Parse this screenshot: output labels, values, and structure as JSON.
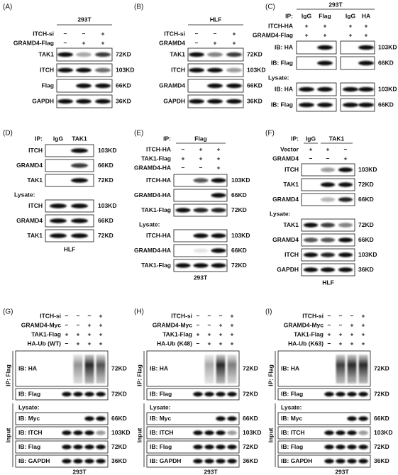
{
  "panels": [
    {
      "label": "(A)",
      "title": "293T",
      "conditions": [
        {
          "name": "ITCH-si",
          "values": [
            "−",
            "−",
            "+"
          ]
        },
        {
          "name": "GRAMD4-Flag",
          "values": [
            "−",
            "+",
            "+"
          ]
        }
      ],
      "sections": [
        {
          "blots": [
            {
              "label": "TAK1",
              "size": "72KD"
            },
            {
              "label": "ITCH",
              "size": "103KD"
            },
            {
              "label": "Flag",
              "size": "66KD"
            },
            {
              "label": "GAPDH",
              "size": "36KD"
            }
          ]
        }
      ]
    },
    {
      "label": "(B)",
      "title": "HLF",
      "conditions": [
        {
          "name": "ITCH-si",
          "values": [
            "−",
            "−",
            "+"
          ]
        },
        {
          "name": "GRAMD4",
          "values": [
            "−",
            "+",
            "+"
          ]
        }
      ],
      "sections": [
        {
          "blots": [
            {
              "label": "TAK1",
              "size": "72KD"
            },
            {
              "label": "ITCH",
              "size": "103KD"
            },
            {
              "label": "GRAMD4",
              "size": "66KD"
            },
            {
              "label": "GAPDH",
              "size": "36KD"
            }
          ]
        }
      ]
    },
    {
      "label": "(C)",
      "title": "293T",
      "ip": {
        "label": "IP:",
        "groups": [
          "IgG",
          "Flag",
          "IgG",
          "HA"
        ]
      },
      "conditions": [
        {
          "name": "ITCH-HA",
          "values": [
            "+",
            "+",
            "+",
            "+"
          ]
        },
        {
          "name": "GRAMD4-Flag",
          "values": [
            "+",
            "+",
            "+",
            "+"
          ]
        }
      ],
      "sections": [
        {
          "blots": [
            {
              "label": "IB: HA",
              "size": "103KD"
            },
            {
              "label": "IB: Flag",
              "size": "66KD"
            }
          ]
        },
        {
          "heading": "Lysate:",
          "blots": [
            {
              "label": "IB: HA",
              "size": "103KD"
            },
            {
              "label": "IB: Flag",
              "size": "66KD"
            }
          ]
        }
      ]
    },
    {
      "label": "(D)",
      "footer": "HLF",
      "ip": {
        "label": "IP:",
        "groups": [
          "IgG",
          "TAK1"
        ]
      },
      "conditions": [],
      "sections": [
        {
          "blots": [
            {
              "label": "ITCH",
              "size": "103KD"
            },
            {
              "label": "GRAMD4",
              "size": "66KD"
            },
            {
              "label": "TAK1",
              "size": "72KD"
            }
          ]
        },
        {
          "heading": "Lysate:",
          "blots": [
            {
              "label": "ITCH",
              "size": "103KD"
            },
            {
              "label": "GRAMD4",
              "size": "66KD"
            },
            {
              "label": "TAK1",
              "size": "72KD"
            }
          ]
        }
      ]
    },
    {
      "label": "(E)",
      "footer": "293T",
      "ip": {
        "label": "IP:",
        "groups": [
          "Flag"
        ]
      },
      "conditions": [
        {
          "name": "ITCH-HA",
          "values": [
            "−",
            "+",
            "+"
          ]
        },
        {
          "name": "TAK1-Flag",
          "values": [
            "+",
            "+",
            "+"
          ]
        },
        {
          "name": "GRAMD4-HA",
          "values": [
            "−",
            "−",
            "+"
          ]
        }
      ],
      "sections": [
        {
          "blots": [
            {
              "label": "ITCH-HA",
              "size": "103KD"
            },
            {
              "label": "GRAMD4-HA",
              "size": "66KD"
            },
            {
              "label": "TAK1-Flag",
              "size": "72KD"
            }
          ]
        },
        {
          "heading": "Lysate:",
          "blots": [
            {
              "label": "ITCH-HA",
              "size": "103KD"
            },
            {
              "label": "GRAMD4-HA",
              "size": "66KD"
            },
            {
              "label": "TAK1-Flag",
              "size": "72KD"
            }
          ]
        }
      ]
    },
    {
      "label": "(F)",
      "footer": "HLF",
      "ip": {
        "label": "IP:",
        "groups": [
          "IgG",
          "TAK1"
        ]
      },
      "conditions": [
        {
          "name": "Vector",
          "values": [
            "+",
            "+",
            "−"
          ]
        },
        {
          "name": "GRAMD4",
          "values": [
            "−",
            "−",
            "+"
          ]
        }
      ],
      "sections": [
        {
          "blots": [
            {
              "label": "ITCH",
              "size": "103KD"
            },
            {
              "label": "TAK1",
              "size": "72KD"
            },
            {
              "label": "GRAMD4",
              "size": "66KD"
            }
          ]
        },
        {
          "heading": "Lysate:",
          "blots": [
            {
              "label": "TAK1",
              "size": "72KD"
            },
            {
              "label": "GRAMD4",
              "size": "66KD"
            },
            {
              "label": "ITCH",
              "size": "103KD"
            },
            {
              "label": "GAPDH",
              "size": "36KD"
            }
          ]
        }
      ]
    },
    {
      "label": "(G)",
      "footer": "293T",
      "conditions": [
        {
          "name": "ITCH-si",
          "values": [
            "−",
            "−",
            "−",
            "+"
          ]
        },
        {
          "name": "GRAMD4-Myc",
          "values": [
            "−",
            "−",
            "+",
            "+"
          ]
        },
        {
          "name": "TAK1-Flag",
          "values": [
            "+",
            "+",
            "+",
            "+"
          ]
        },
        {
          "name": "HA-Ub (WT)",
          "values": [
            "−",
            "+",
            "+",
            "+"
          ]
        }
      ],
      "sections": [
        {
          "side_label": "IP: Flag",
          "blots": [
            {
              "label": "IB: HA",
              "size": "72KD"
            },
            {
              "label": "IB: Flag",
              "size": "72KD"
            }
          ]
        },
        {
          "side_label": "Input",
          "heading": "Lysate:",
          "blots": [
            {
              "label": "IB: Myc",
              "size": "66KD"
            },
            {
              "label": "IB: ITCH",
              "size": "103KD"
            },
            {
              "label": "IB: Flag",
              "size": "72KD"
            },
            {
              "label": "IB: GAPDH",
              "size": "36KD"
            }
          ]
        }
      ]
    },
    {
      "label": "(H)",
      "footer": "293T",
      "conditions": [
        {
          "name": "ITCH-si",
          "values": [
            "−",
            "−",
            "−",
            "+"
          ]
        },
        {
          "name": "GRAMD4-Myc",
          "values": [
            "−",
            "−",
            "+",
            "+"
          ]
        },
        {
          "name": "TAK1-Flag",
          "values": [
            "+",
            "+",
            "+",
            "+"
          ]
        },
        {
          "name": "HA-Ub (K48)",
          "values": [
            "−",
            "+",
            "+",
            "+"
          ]
        }
      ],
      "sections": [
        {
          "side_label": "IP: Flag",
          "blots": [
            {
              "label": "IB: HA",
              "size": "72KD"
            },
            {
              "label": "IB: Flag",
              "size": "72KD"
            }
          ]
        },
        {
          "side_label": "Input",
          "heading": "Lysate:",
          "blots": [
            {
              "label": "IB: Myc",
              "size": "66KD"
            },
            {
              "label": "IB: ITCH",
              "size": "103KD"
            },
            {
              "label": "IB: Flag",
              "size": "72KD"
            },
            {
              "label": "IB: GAPDH",
              "size": "36KD"
            }
          ]
        }
      ]
    },
    {
      "label": "(I)",
      "footer": "293T",
      "conditions": [
        {
          "name": "ITCH-si",
          "values": [
            "−",
            "−",
            "−",
            "+"
          ]
        },
        {
          "name": "GRAMD4-Myc",
          "values": [
            "−",
            "−",
            "+",
            "+"
          ]
        },
        {
          "name": "TAK1-Flag",
          "values": [
            "+",
            "+",
            "+",
            "+"
          ]
        },
        {
          "name": "HA-Ub (K63)",
          "values": [
            "−",
            "+",
            "+",
            "+"
          ]
        }
      ],
      "sections": [
        {
          "side_label": "IP: Flag",
          "blots": [
            {
              "label": "IB: HA",
              "size": "72KD"
            },
            {
              "label": "IB: Flag",
              "size": "72KD"
            }
          ]
        },
        {
          "side_label": "Input",
          "heading": "Lysate:",
          "blots": [
            {
              "label": "IB: Myc",
              "size": "66KD"
            },
            {
              "label": "IB: ITCH",
              "size": "103KD"
            },
            {
              "label": "IB: Flag",
              "size": "72KD"
            },
            {
              "label": "IB: GAPDH",
              "size": "36KD"
            }
          ]
        }
      ]
    }
  ]
}
